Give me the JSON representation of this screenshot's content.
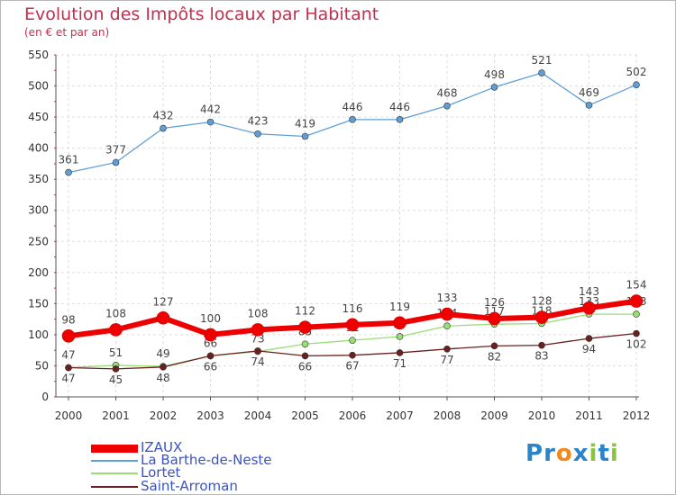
{
  "chart_data": {
    "type": "line",
    "title": "Evolution des Impôts locaux par Habitant",
    "subtitle": "(en € et par an)",
    "xlabel": "",
    "ylabel": "",
    "categories": [
      "2000",
      "2001",
      "2002",
      "2003",
      "2004",
      "2005",
      "2006",
      "2007",
      "2008",
      "2009",
      "2010",
      "2011",
      "2012"
    ],
    "ylim": [
      0,
      550
    ],
    "yticks": [
      0,
      50,
      100,
      150,
      200,
      250,
      300,
      350,
      400,
      450,
      500,
      550
    ],
    "grid": true,
    "legend_position": "bottom-left",
    "series": [
      {
        "name": "IZAUX",
        "color": "#ee0000",
        "values": [
          98,
          108,
          127,
          100,
          108,
          112,
          116,
          119,
          133,
          126,
          128,
          143,
          154
        ]
      },
      {
        "name": "La Barthe-de-Neste",
        "color": "#5f9ed6",
        "values": [
          361,
          377,
          432,
          442,
          423,
          419,
          446,
          446,
          468,
          498,
          521,
          469,
          502
        ]
      },
      {
        "name": "Lortet",
        "color": "#99dd77",
        "values": [
          47,
          51,
          49,
          66,
          73,
          85,
          91,
          97,
          114,
          117,
          118,
          133,
          133
        ]
      },
      {
        "name": "Saint-Arroman",
        "color": "#6b2020",
        "values": [
          47,
          45,
          48,
          66,
          74,
          66,
          67,
          71,
          77,
          82,
          83,
          94,
          102
        ]
      }
    ]
  },
  "logo": {
    "text": "Proxiti",
    "letters": [
      "P",
      "r",
      "o",
      "x",
      "i",
      "t",
      "i"
    ],
    "colors": [
      "#2b83c9",
      "#2b83c9",
      "#f08a1c",
      "#2b83c9",
      "#8bc43f",
      "#2b83c9",
      "#8bc43f"
    ]
  }
}
